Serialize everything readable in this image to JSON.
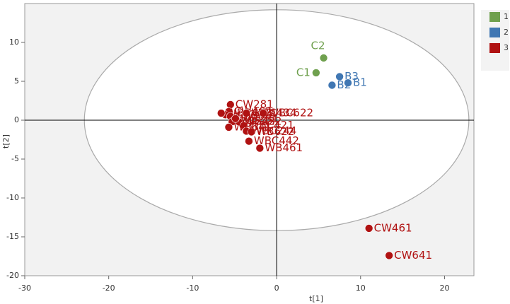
{
  "chart_data": {
    "type": "scatter",
    "xlabel": "t[1]",
    "ylabel": "t[2]",
    "xlim": [
      -30,
      23.5
    ],
    "ylim": [
      -20,
      15
    ],
    "xticks": [
      -30,
      -20,
      -10,
      0,
      10,
      20
    ],
    "yticks": [
      -20,
      -15,
      -10,
      -5,
      0,
      5,
      10
    ],
    "ellipse": {
      "rx": 22.9,
      "ry": 14.2
    },
    "legend": "right",
    "series": [
      {
        "name": "1",
        "color": "#6fa04e",
        "x": [
          5.6,
          4.7
        ],
        "values": [
          8.0,
          6.1
        ],
        "labels": [
          "C2",
          "C1"
        ]
      },
      {
        "name": "2",
        "color": "#4077b3",
        "x": [
          7.5,
          8.5,
          6.6
        ],
        "values": [
          5.6,
          4.8,
          4.5
        ],
        "labels": [
          "B3",
          "B1",
          "B2"
        ]
      },
      {
        "name": "3",
        "color": "#b01212",
        "x": [
          11.0,
          13.4,
          -5.5,
          -5.7,
          -6.1,
          -6.6,
          -5.5,
          -5.3,
          -3.6,
          -1.6,
          -4.5,
          -3.9,
          -3.6,
          -3.0,
          -3.3,
          -2.0,
          -5.7,
          -4.9
        ],
        "values": [
          -13.9,
          -17.4,
          2.0,
          1.1,
          0.7,
          0.9,
          0.5,
          -0.2,
          0.9,
          0.9,
          -0.2,
          -0.7,
          -1.4,
          -1.5,
          -2.7,
          -3.6,
          -0.9,
          0.2
        ],
        "labels": [
          "CW461",
          "CW641",
          "CW281",
          "CW462",
          "WBC443",
          "WBC422",
          "CW262",
          "CW242",
          "WBC434",
          "WBC622",
          "WB232",
          "WBC421",
          "WBC244",
          "WB622",
          "WBC442",
          "WB461",
          "WB641",
          "WB281"
        ]
      }
    ]
  }
}
